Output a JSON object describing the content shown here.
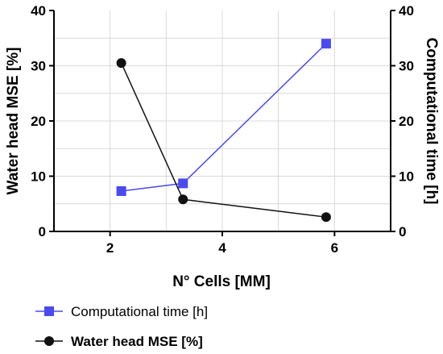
{
  "chart_data": {
    "type": "line",
    "xlabel": "N° Cells [MM]",
    "ylabel_left": "Water head MSE [%]",
    "ylabel_right": "Computational time [h]",
    "xlim": [
      1,
      7
    ],
    "x_ticks": [
      2,
      4,
      6
    ],
    "ylim_left": [
      0,
      40
    ],
    "ylim_right": [
      0,
      40
    ],
    "y_ticks": [
      0,
      10,
      20,
      30,
      40
    ],
    "grid": true,
    "legend_position": "bottom",
    "series": [
      {
        "name": "Computational time [h]",
        "axis": "right",
        "marker": "square",
        "color": "#4a4af0",
        "x": [
          2.2,
          3.3,
          5.85
        ],
        "y": [
          7.3,
          8.7,
          34
        ]
      },
      {
        "name": "Water head MSE [%]",
        "axis": "left",
        "marker": "circle",
        "color": "#111111",
        "x": [
          2.2,
          3.3,
          5.85
        ],
        "y": [
          30.5,
          5.8,
          2.6
        ]
      }
    ]
  }
}
